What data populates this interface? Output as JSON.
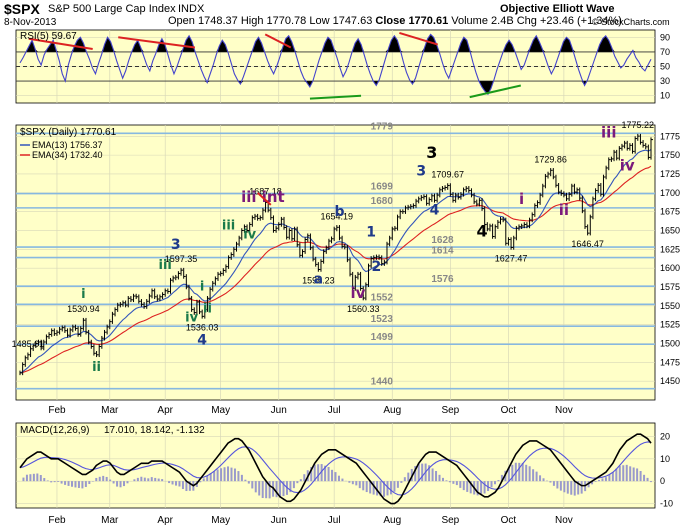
{
  "header": {
    "ticker": "$SPX",
    "name": "S&P 500 Large Cap Index",
    "exchange": "INDX",
    "date": "8-Nov-2013",
    "open_label": "Open",
    "open": "1748.37",
    "high_label": "High",
    "high": "1770.78",
    "low_label": "Low",
    "low": "1747.63",
    "close_label": "Close",
    "close": "1770.61",
    "volume_label": "Volume",
    "volume": "2.4B",
    "chg_label": "Chg",
    "chg": "+23.46 (+1.34%)",
    "brand": "Objective Elliott Wave",
    "copyright": "© StockCharts.com"
  },
  "colors": {
    "panel_bg": "#ffffc8",
    "grid": "#d8d8b8",
    "hline": "#87b8e0",
    "rsi": "#4444cc",
    "price": "#000000",
    "ema13": "#3355bb",
    "ema34": "#dd2222",
    "macd": "#000000",
    "signal": "#5555dd",
    "hist": "#9999cc",
    "wave_dark": "#1f3a8a",
    "wave_green": "#1a7a4a",
    "wave_purple": "#7b1a7b",
    "wave_black": "#000000",
    "fib_gray": "#888888"
  },
  "legend": {
    "rsi": "RSI(5) 59.67",
    "price": "$SPX (Daily) 1770.61",
    "ema13": "EMA(13) 1756.37",
    "ema34": "EMA(34) 1732.40",
    "macd_label": "MACD(12,26,9)",
    "macd_vals": "17.010, 18.142, -1.132"
  },
  "chart_data": [
    {
      "type": "line",
      "panel": "rsi",
      "title": "RSI(5) 59.67",
      "ylim": [
        0,
        100
      ],
      "y_ticks": [
        "90",
        "70",
        "50",
        "30",
        "10"
      ],
      "reference_levels": [
        70,
        50,
        30
      ],
      "grid": true,
      "divergence_lines": 5,
      "series": [
        {
          "name": "RSI(5)",
          "values": [
            55,
            62,
            70,
            78,
            86,
            74,
            60,
            52,
            66,
            74,
            80,
            86,
            72,
            58,
            40,
            30,
            52,
            66,
            78,
            86,
            90,
            82,
            70,
            60,
            48,
            40,
            54,
            66,
            80,
            90,
            84,
            72,
            58,
            46,
            34,
            44,
            58,
            70,
            80,
            86,
            76,
            64,
            52,
            44,
            58,
            68,
            80,
            88,
            80,
            66,
            52,
            40,
            50,
            62,
            74,
            86,
            92,
            84,
            70,
            58,
            46,
            36,
            28,
            40,
            52,
            66,
            78,
            86,
            80,
            68,
            54,
            40,
            32,
            26,
            36,
            48,
            60,
            72,
            84,
            90,
            82,
            70,
            58,
            48,
            40,
            50,
            62,
            76,
            88,
            92,
            84,
            72,
            58,
            44,
            34,
            28,
            22,
            30,
            44,
            58,
            70,
            82,
            90,
            86,
            74,
            62,
            48,
            36,
            44,
            56,
            70,
            82,
            88,
            80,
            66,
            52,
            40,
            30,
            24,
            32,
            46,
            60,
            74,
            86,
            92,
            86,
            72,
            56,
            42,
            32,
            26,
            34,
            48,
            62,
            76,
            88,
            94,
            90,
            80,
            68,
            54,
            42,
            34,
            46,
            58,
            70,
            82,
            90,
            86,
            72,
            56,
            42,
            30,
            22,
            16,
            12,
            20,
            32,
            46,
            58,
            70,
            80,
            86,
            80,
            70,
            58,
            46,
            52,
            64,
            76,
            86,
            92,
            84,
            74,
            62,
            50,
            40,
            48,
            60,
            72,
            84,
            90,
            86,
            74,
            60,
            46,
            34,
            24,
            32,
            44,
            56,
            68,
            80,
            88,
            92,
            86,
            76,
            64,
            56,
            48,
            52,
            60,
            66,
            72,
            62,
            56,
            48,
            44,
            52,
            60
          ]
        }
      ]
    },
    {
      "type": "line",
      "panel": "price",
      "title": "$SPX (Daily) 1770.61",
      "ylim": [
        1425,
        1790
      ],
      "y_ticks": [
        "1775",
        "1750",
        "1725",
        "1700",
        "1675",
        "1650",
        "1625",
        "1600",
        "1575",
        "1550",
        "1525",
        "1500",
        "1475",
        "1450"
      ],
      "x_labels": [
        "Feb",
        "Mar",
        "Apr",
        "May",
        "Jun",
        "Jul",
        "Aug",
        "Sep",
        "Oct",
        "Nov"
      ],
      "horizontal_levels": [
        1779,
        1699,
        1680,
        1628,
        1614,
        1576,
        1552,
        1523,
        1499,
        1440
      ],
      "grid": true,
      "series": [
        {
          "name": "$SPX",
          "values": [
            1461,
            1472,
            1481,
            1485,
            1493,
            1497,
            1500,
            1502,
            1494,
            1502,
            1509,
            1512,
            1517,
            1513,
            1515,
            1519,
            1521,
            1517,
            1511,
            1518,
            1522,
            1520,
            1512,
            1520,
            1530.94,
            1515,
            1502,
            1496,
            1487,
            1485.01,
            1496,
            1507,
            1515,
            1522,
            1529,
            1539,
            1545,
            1551,
            1552,
            1554,
            1551,
            1560,
            1558,
            1563,
            1562,
            1556,
            1552,
            1549,
            1556,
            1563,
            1570,
            1562,
            1559,
            1562,
            1565,
            1570,
            1569,
            1584,
            1587,
            1588,
            1593,
            1597.35,
            1589,
            1575,
            1560,
            1545,
            1541,
            1555,
            1542,
            1536.03,
            1545,
            1560,
            1572,
            1580,
            1586,
            1592,
            1593,
            1597,
            1602,
            1614,
            1618,
            1625,
            1632,
            1640,
            1650,
            1655,
            1650,
            1658,
            1667,
            1669,
            1666,
            1667,
            1677,
            1687.18,
            1677,
            1667,
            1650,
            1653,
            1658,
            1665,
            1654,
            1641,
            1650,
            1639,
            1652,
            1631,
            1617,
            1622,
            1638,
            1643,
            1627,
            1612,
            1605,
            1598.23,
            1609,
            1622,
            1627,
            1636,
            1639,
            1652,
            1654.19,
            1640,
            1629,
            1628,
            1611,
            1592,
            1573,
            1588,
            1592,
            1573,
            1560.33,
            1578,
            1603,
            1613,
            1614,
            1615,
            1614,
            1606,
            1608,
            1632,
            1640,
            1652,
            1653,
            1668,
            1675,
            1675,
            1680,
            1681,
            1682,
            1683,
            1689,
            1692,
            1694,
            1695,
            1686,
            1691,
            1696,
            1690,
            1697,
            1704,
            1706,
            1707,
            1709.67,
            1698,
            1690,
            1697,
            1694,
            1698,
            1704,
            1706,
            1703,
            1697,
            1688,
            1685,
            1690,
            1679,
            1658,
            1652,
            1656,
            1642,
            1655,
            1661,
            1665,
            1664,
            1633,
            1638,
            1627.47,
            1640,
            1653,
            1655,
            1656,
            1658,
            1656,
            1664,
            1671,
            1683,
            1687,
            1697,
            1709,
            1722,
            1725,
            1729.86,
            1721,
            1710,
            1701,
            1699,
            1697,
            1692,
            1698,
            1709,
            1701,
            1704,
            1693,
            1676,
            1655,
            1646.47,
            1668,
            1692,
            1703,
            1710,
            1698,
            1721,
            1733,
            1744,
            1745,
            1754,
            1746,
            1759,
            1762,
            1766,
            1759,
            1763,
            1755,
            1772,
            1775.22,
            1767,
            1763,
            1761,
            1747,
            1770.61
          ]
        },
        {
          "name": "EMA(13)",
          "values": []
        },
        {
          "name": "EMA(34)",
          "values": []
        }
      ]
    },
    {
      "type": "line",
      "panel": "macd",
      "title": "MACD(12,26,9) 17.010, 18.142, -1.132",
      "ylim": [
        -12,
        26
      ],
      "y_ticks": [
        "20",
        "10",
        "0",
        "-10"
      ],
      "x_labels": [
        "Feb",
        "Mar",
        "Apr",
        "May",
        "Jun",
        "Jul",
        "Aug",
        "Sep",
        "Oct",
        "Nov"
      ],
      "series": [
        {
          "name": "MACD",
          "values": [
            6,
            8,
            10,
            11,
            12,
            13,
            13,
            12,
            11,
            10,
            10,
            10,
            9,
            8,
            7,
            6,
            5,
            4,
            3,
            3,
            4,
            5,
            7,
            8,
            9,
            9,
            8,
            6,
            4,
            3,
            3,
            4,
            5,
            6,
            7,
            8,
            8,
            8,
            9,
            9,
            9,
            9,
            8,
            7,
            6,
            5,
            4,
            2,
            0,
            -1,
            -2,
            -1,
            1,
            3,
            5,
            7,
            9,
            11,
            13,
            15,
            17,
            18,
            19,
            19,
            18,
            16,
            14,
            11,
            8,
            5,
            2,
            0,
            -2,
            -3,
            -5,
            -7,
            -8,
            -9,
            -9,
            -8,
            -6,
            -4,
            -1,
            2,
            5,
            8,
            10,
            12,
            13,
            14,
            14,
            14,
            13,
            12,
            11,
            10,
            9,
            8,
            6,
            4,
            2,
            0,
            -2,
            -4,
            -6,
            -8,
            -9,
            -10,
            -10,
            -9,
            -7,
            -4,
            -1,
            2,
            5,
            8,
            10,
            12,
            13,
            13,
            13,
            12,
            11,
            10,
            9,
            8,
            7,
            5,
            3,
            1,
            -1,
            -3,
            -5,
            -6,
            -7,
            -7,
            -6,
            -5,
            -3,
            0,
            3,
            6,
            9,
            12,
            14,
            16,
            17,
            18,
            18,
            18,
            17,
            16,
            15,
            14,
            12,
            10,
            8,
            6,
            4,
            2,
            0,
            -1,
            -2,
            -2,
            -1,
            0,
            1,
            2,
            3,
            4,
            6,
            8,
            11,
            14,
            16,
            18,
            19,
            20,
            21,
            21,
            20,
            19,
            17
          ]
        },
        {
          "name": "Signal",
          "values": []
        },
        {
          "name": "Histogram",
          "values": []
        }
      ]
    }
  ],
  "annotations": {
    "price_labels": [
      {
        "text": "1530.94"
      },
      {
        "text": "1485.01"
      },
      {
        "text": "1597.35"
      },
      {
        "text": "1536.03"
      },
      {
        "text": "1687.18"
      },
      {
        "text": "1654.19"
      },
      {
        "text": "1598.23"
      },
      {
        "text": "1560.33"
      },
      {
        "text": "1709.67"
      },
      {
        "text": "1627.47"
      },
      {
        "text": "1729.86"
      },
      {
        "text": "1646.47"
      },
      {
        "text": "1775.22"
      }
    ],
    "level_labels": [
      "1779",
      "1699",
      "1680",
      "1628",
      "1614",
      "1576",
      "1552",
      "1523",
      "1499",
      "1440"
    ],
    "waves": [
      {
        "text": "i",
        "style": "green"
      },
      {
        "text": "ii",
        "style": "green"
      },
      {
        "text": "iii",
        "style": "green"
      },
      {
        "text": "iv",
        "style": "green"
      },
      {
        "text": "i",
        "style": "green"
      },
      {
        "text": "ii",
        "style": "green"
      },
      {
        "text": "iii",
        "style": "green"
      },
      {
        "text": "iv",
        "style": "green"
      },
      {
        "text": "3",
        "style": "dark"
      },
      {
        "text": "4",
        "style": "dark"
      },
      {
        "text": "iii int",
        "style": "purple"
      },
      {
        "text": "a",
        "style": "dark"
      },
      {
        "text": "b",
        "style": "dark"
      },
      {
        "text": "iv",
        "style": "purple"
      },
      {
        "text": "1",
        "style": "dark"
      },
      {
        "text": "2",
        "style": "dark"
      },
      {
        "text": "3",
        "style": "dark"
      },
      {
        "text": "4",
        "style": "dark"
      },
      {
        "text": "3",
        "style": "black"
      },
      {
        "text": "4",
        "style": "black"
      },
      {
        "text": "i",
        "style": "purple"
      },
      {
        "text": "ii",
        "style": "purple"
      },
      {
        "text": "iii",
        "style": "purple"
      },
      {
        "text": "iv",
        "style": "purple"
      }
    ]
  }
}
